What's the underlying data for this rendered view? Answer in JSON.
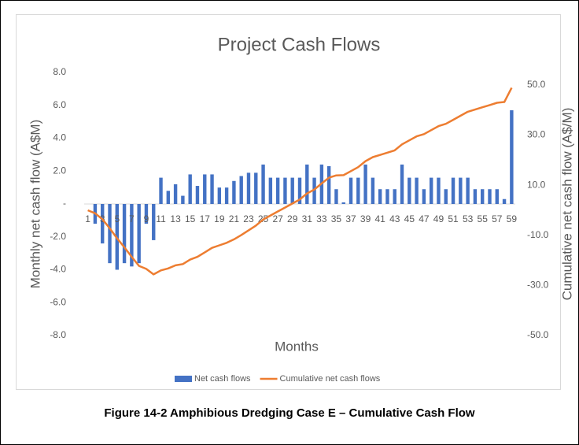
{
  "chart_data": {
    "type": "combo",
    "title": "Project Cash Flows",
    "x_label": "Months",
    "y_label": "Monthly net cash flow (A$M)",
    "y2_label": "Cumulative net cash flow (A$/M)",
    "caption": "Figure 14-2 Amphibious Dredging Case E – Cumulative Cash Flow",
    "categories": [
      1,
      null,
      3,
      null,
      5,
      null,
      7,
      null,
      9,
      null,
      11,
      null,
      13,
      null,
      15,
      null,
      17,
      null,
      19,
      null,
      21,
      null,
      23,
      null,
      25,
      null,
      27,
      null,
      29,
      null,
      31,
      null,
      33,
      null,
      35,
      null,
      37,
      null,
      39,
      null,
      41,
      null,
      43,
      null,
      45,
      null,
      47,
      null,
      49,
      null,
      51,
      null,
      53,
      null,
      55,
      null,
      57,
      null,
      59
    ],
    "ylim": [
      -8,
      8
    ],
    "yticks": [
      {
        "value": 8,
        "label": "8.0"
      },
      {
        "value": 6,
        "label": "6.0"
      },
      {
        "value": 4,
        "label": "4.0"
      },
      {
        "value": 2,
        "label": "2.0"
      },
      {
        "value": 0,
        "label": "-"
      },
      {
        "value": -2,
        "label": "-2.0"
      },
      {
        "value": -4,
        "label": "-4.0"
      },
      {
        "value": -6,
        "label": "-6.0"
      },
      {
        "value": -8,
        "label": "-8.0"
      }
    ],
    "y2lim": [
      -50,
      55
    ],
    "y2ticks": [
      {
        "value": 50,
        "label": "50.0"
      },
      {
        "value": 30,
        "label": "30.0"
      },
      {
        "value": 10,
        "label": "10.0"
      },
      {
        "value": -10,
        "label": "-10.0"
      },
      {
        "value": -30,
        "label": "-30.0"
      },
      {
        "value": -50,
        "label": "-50.0"
      }
    ],
    "legend": "bottom",
    "series": [
      {
        "name": "Net cash flows",
        "type": "bar",
        "color": "#4472c4",
        "values": [
          0,
          -1.2,
          -2.4,
          -3.6,
          -4.0,
          -3.6,
          -3.8,
          -3.6,
          -1.2,
          -2.2,
          1.6,
          0.8,
          1.2,
          0.5,
          1.8,
          1.1,
          1.8,
          1.8,
          1.0,
          1.0,
          1.4,
          1.7,
          1.9,
          1.9,
          2.4,
          1.6,
          1.6,
          1.6,
          1.6,
          1.6,
          2.4,
          1.6,
          2.4,
          2.3,
          0.9,
          0.1,
          1.6,
          1.6,
          2.4,
          1.6,
          0.9,
          0.9,
          0.9,
          2.4,
          1.6,
          1.6,
          0.9,
          1.6,
          1.6,
          0.9,
          1.6,
          1.6,
          1.6,
          0.9,
          0.9,
          0.9,
          0.9,
          0.3,
          5.7
        ]
      },
      {
        "name": "Cumulative net cash flows",
        "type": "line",
        "axis": "y2",
        "color": "#ed7d31",
        "values": [
          0,
          -1.2,
          -3.6,
          -7.2,
          -11.2,
          -14.8,
          -18.6,
          -22.2,
          -23.4,
          -25.6,
          -24.0,
          -23.2,
          -22.0,
          -21.5,
          -19.7,
          -18.6,
          -16.8,
          -15.0,
          -14.0,
          -13.0,
          -11.6,
          -9.9,
          -8.0,
          -6.1,
          -3.7,
          -2.1,
          -0.5,
          1.1,
          2.7,
          4.3,
          6.7,
          8.3,
          10.7,
          13.0,
          13.9,
          14.0,
          15.6,
          17.2,
          19.6,
          21.2,
          22.1,
          23.0,
          23.9,
          26.3,
          27.9,
          29.5,
          30.4,
          32.0,
          33.6,
          34.5,
          36.1,
          37.7,
          39.3,
          40.2,
          41.1,
          42.0,
          42.9,
          43.2,
          48.9
        ]
      }
    ]
  }
}
